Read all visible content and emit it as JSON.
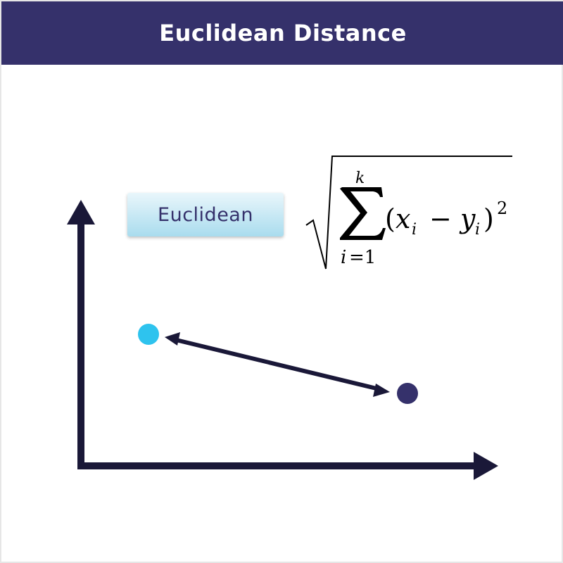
{
  "header": {
    "title": "Euclidean Distance"
  },
  "label": {
    "text": "Euclidean"
  },
  "formula": {
    "sum_upper": "k",
    "sum_lower_var": "i",
    "sum_lower_eq": "=1",
    "open_paren": "(",
    "x": "x",
    "x_sub": "i",
    "minus": "−",
    "y": "y",
    "y_sub": "i",
    "close_paren": ")",
    "exponent": "2"
  },
  "colors": {
    "header_bg": "#35316b",
    "axis": "#1a1838",
    "point_a": "#2ec3ee",
    "point_b": "#35316b",
    "label_text": "#35316b",
    "label_bg_top": "#e9f6fb",
    "label_bg_bottom": "#a9dcee"
  }
}
